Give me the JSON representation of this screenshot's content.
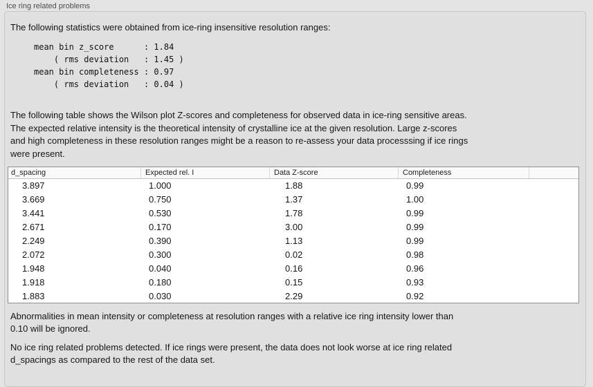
{
  "panel": {
    "title": "Ice ring related problems"
  },
  "stats": {
    "intro": "The following statistics were obtained from ice-ring insensitive resolution ranges:",
    "block_lines": [
      "mean bin z_score      : 1.84",
      "    ( rms deviation   : 1.45 )",
      "mean bin completeness : 0.97",
      "    ( rms deviation   : 0.04 )"
    ],
    "mean_bin_z_score": "1.84",
    "z_score_rms_deviation": "1.45",
    "mean_bin_completeness": "0.97",
    "completeness_rms_deviation": "0.04"
  },
  "table_intro_lines": [
    "The following table shows the Wilson plot Z-scores and completeness for observed data in ice-ring sensitive areas.",
    "The expected relative intensity is the theoretical intensity of crystalline ice at the given resolution. Large z-scores",
    "and high completeness in these resolution ranges might be a reason to re-assess your data processsing if ice rings",
    "were present."
  ],
  "table": {
    "columns": [
      "d_spacing",
      "Expected rel. I",
      "Data Z-score",
      "Completeness",
      ""
    ],
    "rows": [
      [
        "3.897",
        "1.000",
        "1.88",
        "0.99"
      ],
      [
        "3.669",
        "0.750",
        "1.37",
        "1.00"
      ],
      [
        "3.441",
        "0.530",
        "1.78",
        "0.99"
      ],
      [
        "2.671",
        "0.170",
        "3.00",
        "0.99"
      ],
      [
        "2.249",
        "0.390",
        "1.13",
        "0.99"
      ],
      [
        "2.072",
        "0.300",
        "0.02",
        "0.98"
      ],
      [
        "1.948",
        "0.040",
        "0.16",
        "0.96"
      ],
      [
        "1.918",
        "0.180",
        "0.15",
        "0.93"
      ],
      [
        "1.883",
        "0.030",
        "2.29",
        "0.92"
      ]
    ]
  },
  "notes": {
    "ignore_lines": [
      "Abnormalities in mean intensity or completeness at resolution ranges with a relative ice ring intensity lower than",
      "0.10 will be ignored."
    ],
    "conclusion_lines": [
      "No ice ring related problems detected. If ice rings were present, the data does not look worse at ice ring related",
      "d_spacings as compared to the rest of the data set."
    ]
  }
}
